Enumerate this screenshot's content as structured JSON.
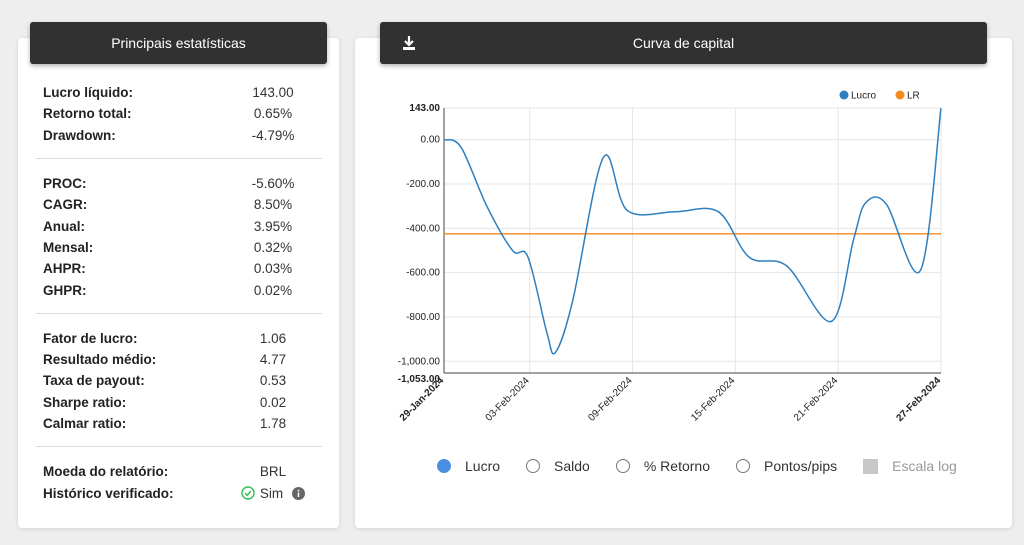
{
  "stats": {
    "title": "Principais estatísticas",
    "groups": [
      [
        {
          "label": "Lucro líquido:",
          "value": "143.00"
        },
        {
          "label": "Retorno total:",
          "value": "0.65%"
        },
        {
          "label": "Drawdown:",
          "value": "-4.79%"
        }
      ],
      [
        {
          "label": "PROC:",
          "value": "-5.60%"
        },
        {
          "label": "CAGR:",
          "value": "8.50%"
        },
        {
          "label": "Anual:",
          "value": "3.95%"
        },
        {
          "label": "Mensal:",
          "value": "0.32%"
        },
        {
          "label": "AHPR:",
          "value": "0.03%"
        },
        {
          "label": "GHPR:",
          "value": "0.02%"
        }
      ],
      [
        {
          "label": "Fator de lucro:",
          "value": "1.06"
        },
        {
          "label": "Resultado médio:",
          "value": "4.77"
        },
        {
          "label": "Taxa de payout:",
          "value": "0.53"
        },
        {
          "label": "Sharpe ratio:",
          "value": "0.02"
        },
        {
          "label": "Calmar ratio:",
          "value": "1.78"
        }
      ]
    ],
    "currency_label": "Moeda do relatório:",
    "currency_value": "BRL",
    "verified_label": "Histórico verificado:",
    "verified_value": "Sim"
  },
  "chart_card": {
    "title": "Curva de capital",
    "download_icon": "download-icon"
  },
  "selectors": {
    "lucro": "Lucro",
    "saldo": "Saldo",
    "retorno": "% Retorno",
    "pontos": "Pontos/pips",
    "escala": "Escala log",
    "selected": "lucro"
  },
  "colors": {
    "lucro": "#2e7fbf",
    "lr": "#f28a1e",
    "header_bg": "#313131",
    "check": "#2fbf4f"
  },
  "chart_data": {
    "type": "line",
    "legend": [
      "Lucro",
      "LR"
    ],
    "legend_position": "top-right",
    "y_ticks": [
      "143.00",
      "0.00",
      "-200.00",
      "-400.00",
      "-600.00",
      "-800.00",
      "-1,000.00",
      "-1,053.00"
    ],
    "y_tick_values": [
      143,
      0,
      -200,
      -400,
      -600,
      -800,
      -1000,
      -1053
    ],
    "ylim": [
      -1053,
      143
    ],
    "x_ticks": [
      "29-Jan-2024",
      "03-Feb-2024",
      "09-Feb-2024",
      "15-Feb-2024",
      "21-Feb-2024",
      "27-Feb-2024"
    ],
    "x_tick_values": [
      0,
      5,
      11,
      17,
      23,
      29
    ],
    "xlim": [
      0,
      29
    ],
    "grid": true,
    "series": [
      {
        "name": "Lucro",
        "points": [
          [
            0,
            0
          ],
          [
            1,
            -35
          ],
          [
            2.5,
            -300
          ],
          [
            4,
            -500
          ],
          [
            4.9,
            -530
          ],
          [
            6,
            -870
          ],
          [
            6.5,
            -960
          ],
          [
            7.5,
            -730
          ],
          [
            9.3,
            -80
          ],
          [
            10.7,
            -320
          ],
          [
            13.5,
            -325
          ],
          [
            16,
            -325
          ],
          [
            17.8,
            -530
          ],
          [
            20,
            -570
          ],
          [
            22.6,
            -820
          ],
          [
            23.9,
            -450
          ],
          [
            24.6,
            -285
          ],
          [
            25.8,
            -290
          ],
          [
            27.8,
            -590
          ],
          [
            29,
            143
          ]
        ]
      },
      {
        "name": "LR",
        "points": [
          [
            0,
            -425
          ],
          [
            29,
            -425
          ]
        ]
      }
    ]
  }
}
